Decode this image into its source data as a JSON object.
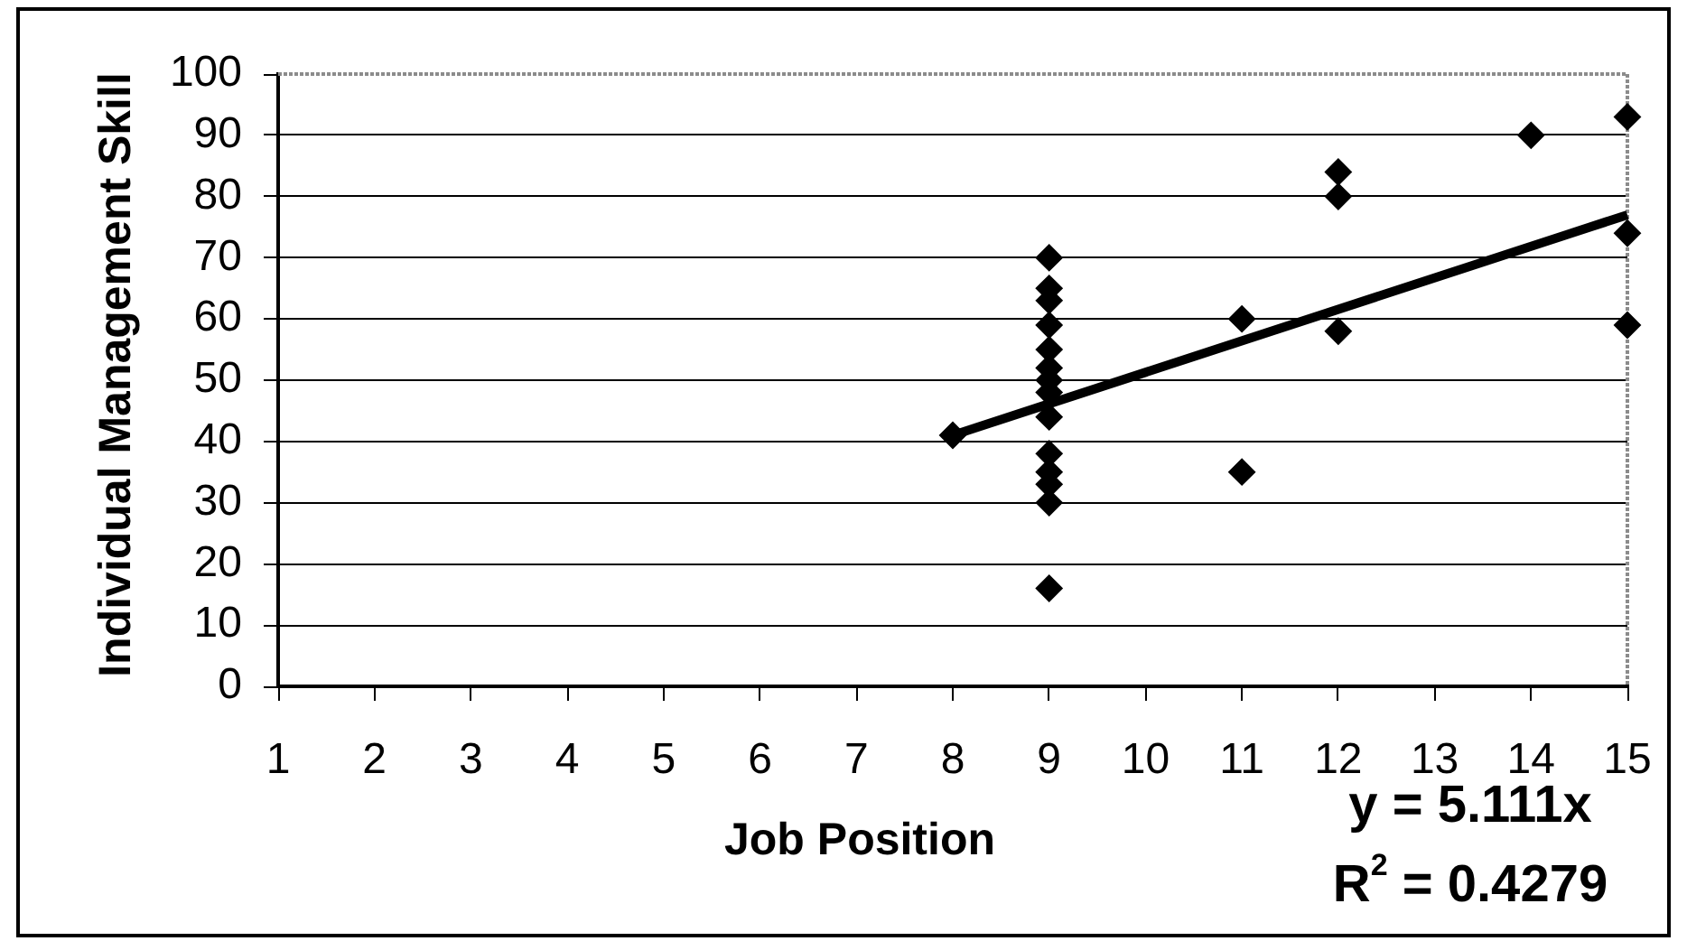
{
  "chart_data": {
    "type": "scatter",
    "xlabel": "Job Position",
    "ylabel": "Individual Management Skill",
    "xlim": [
      1,
      15
    ],
    "xticks": [
      1,
      2,
      3,
      4,
      5,
      6,
      7,
      8,
      9,
      10,
      11,
      12,
      13,
      14,
      15
    ],
    "ylim": [
      0,
      100
    ],
    "yticks": [
      0,
      10,
      20,
      30,
      40,
      50,
      60,
      70,
      80,
      90,
      100
    ],
    "grid": "y",
    "legend": false,
    "marker": "diamond",
    "series": [
      {
        "color": "#000000",
        "x": [
          8,
          9,
          9,
          9,
          9,
          9,
          9,
          9,
          9,
          9,
          9,
          9,
          9,
          9,
          9,
          11,
          11,
          12,
          12,
          12,
          14,
          15,
          15,
          15
        ],
        "values": [
          41,
          70,
          65,
          63,
          59,
          55,
          52,
          50,
          48,
          44,
          38,
          35,
          33,
          30,
          16,
          60,
          35,
          84,
          80,
          58,
          90,
          93,
          74,
          59
        ]
      },
      {
        "type": "line",
        "color": "#000000",
        "marker": "none",
        "x": [
          8,
          15
        ],
        "values": [
          41,
          77
        ]
      }
    ],
    "annotations": [
      "y = 5.111x",
      "R$^{2}$ = 0.4279"
    ]
  }
}
